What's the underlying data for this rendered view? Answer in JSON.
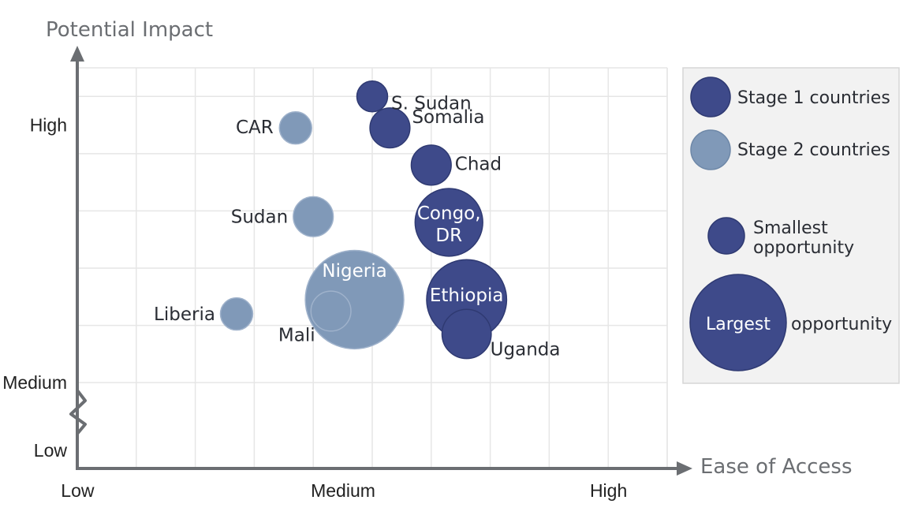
{
  "chart_data": {
    "type": "scatter",
    "xlabel": "Ease of Access",
    "ylabel": "Potential Impact",
    "x_ticks": [
      {
        "value": 0.5,
        "label": "Low"
      },
      {
        "value": 5,
        "label": "Medium"
      },
      {
        "value": 9.5,
        "label": "High"
      }
    ],
    "y_ticks": [
      {
        "value": 0,
        "label": "Low"
      },
      {
        "value": 1.5,
        "label": "Medium"
      },
      {
        "value": 6,
        "label": "High"
      }
    ],
    "xlim": [
      0,
      10
    ],
    "ylim": [
      0,
      7
    ],
    "y_axis_break": true,
    "grid": true,
    "series": [
      {
        "name": "Stage 1 countries",
        "color": "#3e4a8a",
        "points": [
          {
            "label": "S. Sudan",
            "x": 5.0,
            "y": 6.5,
            "size": 1.0
          },
          {
            "label": "Somalia",
            "x": 5.3,
            "y": 5.95,
            "size": 1.3
          },
          {
            "label": "Chad",
            "x": 6.0,
            "y": 5.3,
            "size": 1.3
          },
          {
            "label": "Congo, DR",
            "x": 6.3,
            "y": 4.3,
            "size": 2.2
          },
          {
            "label": "Ethiopia",
            "x": 6.6,
            "y": 2.95,
            "size": 2.6
          },
          {
            "label": "Uganda",
            "x": 6.6,
            "y": 2.35,
            "size": 1.6
          }
        ]
      },
      {
        "name": "Stage 2 countries",
        "color": "#8099b8",
        "points": [
          {
            "label": "CAR",
            "x": 3.7,
            "y": 5.95,
            "size": 1.05
          },
          {
            "label": "Sudan",
            "x": 4.0,
            "y": 4.4,
            "size": 1.3
          },
          {
            "label": "Nigeria",
            "x": 4.7,
            "y": 2.95,
            "size": 3.2
          },
          {
            "label": "Mali",
            "x": 4.3,
            "y": 2.75,
            "size": 1.3
          },
          {
            "label": "Liberia",
            "x": 2.7,
            "y": 2.7,
            "size": 1.05
          }
        ]
      }
    ],
    "legend": {
      "placement": "right",
      "entries": [
        {
          "label": "Stage 1 countries",
          "color": "#3e4a8a"
        },
        {
          "label": "Stage 2 countries",
          "color": "#8099b8"
        }
      ],
      "size_key": {
        "smallest_label": "Smallest opportunity",
        "largest_inner_label": "Largest",
        "largest_outer_label": "opportunity"
      }
    }
  }
}
